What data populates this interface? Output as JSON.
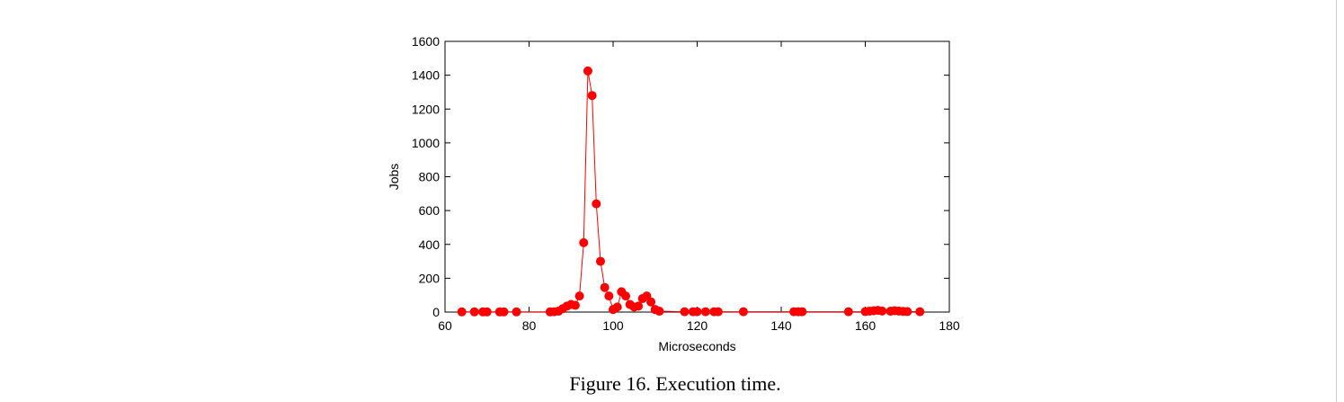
{
  "caption": "Figure 16. Execution time.",
  "chart_data": {
    "type": "line",
    "xlabel": "Microseconds",
    "ylabel": "Jobs",
    "xlim": [
      60,
      180
    ],
    "ylim": [
      0,
      1600
    ],
    "x_ticks": [
      60,
      80,
      100,
      120,
      140,
      160,
      180
    ],
    "y_ticks": [
      0,
      200,
      400,
      600,
      800,
      1000,
      1200,
      1400,
      1600
    ],
    "grid": false,
    "legend": "none",
    "marker": "circle",
    "series": [
      {
        "color": "#ff0000",
        "points": [
          [
            64,
            1
          ],
          [
            67,
            1
          ],
          [
            69,
            1
          ],
          [
            70,
            1
          ],
          [
            73,
            1
          ],
          [
            74,
            1
          ],
          [
            77,
            1
          ],
          [
            85,
            1
          ],
          [
            86,
            2
          ],
          [
            87,
            5
          ],
          [
            88,
            20
          ],
          [
            89,
            35
          ],
          [
            90,
            45
          ],
          [
            91,
            40
          ],
          [
            92,
            95
          ],
          [
            93,
            410
          ],
          [
            94,
            1425
          ],
          [
            95,
            1280
          ],
          [
            96,
            640
          ],
          [
            97,
            300
          ],
          [
            98,
            145
          ],
          [
            99,
            95
          ],
          [
            100,
            15
          ],
          [
            101,
            30
          ],
          [
            102,
            120
          ],
          [
            103,
            95
          ],
          [
            104,
            45
          ],
          [
            105,
            30
          ],
          [
            106,
            35
          ],
          [
            107,
            80
          ],
          [
            108,
            95
          ],
          [
            109,
            60
          ],
          [
            110,
            15
          ],
          [
            111,
            5
          ],
          [
            117,
            2
          ],
          [
            119,
            2
          ],
          [
            120,
            2
          ],
          [
            122,
            2
          ],
          [
            124,
            2
          ],
          [
            125,
            2
          ],
          [
            131,
            2
          ],
          [
            143,
            2
          ],
          [
            144,
            2
          ],
          [
            145,
            2
          ],
          [
            156,
            2
          ],
          [
            160,
            3
          ],
          [
            161,
            5
          ],
          [
            162,
            8
          ],
          [
            163,
            10
          ],
          [
            164,
            6
          ],
          [
            166,
            5
          ],
          [
            167,
            8
          ],
          [
            168,
            6
          ],
          [
            169,
            4
          ],
          [
            170,
            3
          ],
          [
            173,
            2
          ]
        ]
      }
    ]
  }
}
